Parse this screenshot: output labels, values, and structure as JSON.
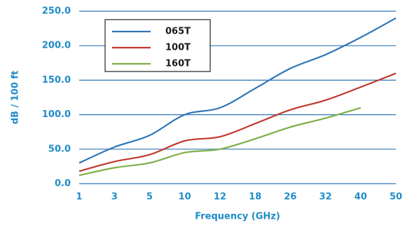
{
  "chart_data": {
    "type": "line",
    "xlabel": "Frequency (GHz)",
    "ylabel": "dB / 100 ft",
    "categories": [
      "1",
      "3",
      "5",
      "10",
      "12",
      "18",
      "26",
      "32",
      "40",
      "50"
    ],
    "series": [
      {
        "name": "065T",
        "color": "#2e75b6",
        "values": [
          30,
          53,
          70,
          100,
          110,
          138,
          167,
          187,
          212,
          240
        ]
      },
      {
        "name": "100T",
        "color": "#c0392b",
        "values": [
          18,
          32,
          42,
          62,
          68,
          87,
          107,
          121,
          140,
          160
        ]
      },
      {
        "name": "160T",
        "color": "#7fae4a",
        "values": [
          12,
          23,
          30,
          45,
          50,
          65,
          82,
          95,
          110,
          null
        ]
      }
    ],
    "ylim": [
      0,
      250
    ],
    "yticks": [
      {
        "value": 0,
        "label": "0.0"
      },
      {
        "value": 50,
        "label": "50.0"
      },
      {
        "value": 100,
        "label": "100.0"
      },
      {
        "value": 150,
        "label": "150.0"
      },
      {
        "value": 200,
        "label": "200.0"
      },
      {
        "value": 250,
        "label": "250.0"
      }
    ],
    "grid": true,
    "legend": "upper left"
  }
}
